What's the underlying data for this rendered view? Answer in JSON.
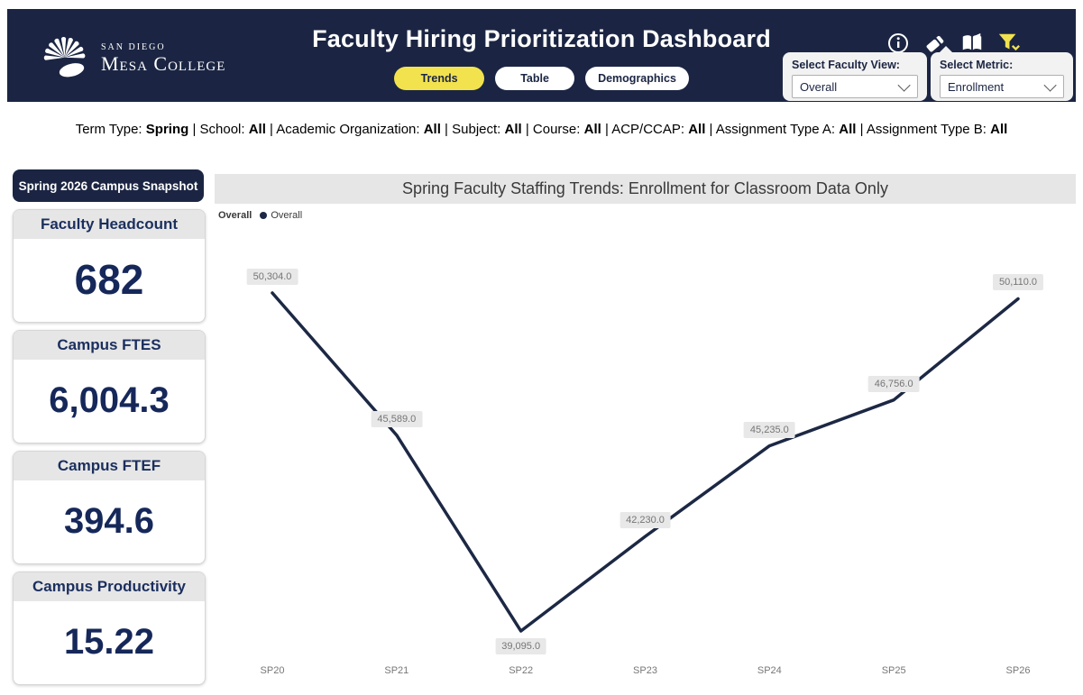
{
  "header": {
    "logo": {
      "line1": "SAN DIEGO",
      "line2": "Mesa College"
    },
    "title": "Faculty Hiring Prioritization Dashboard",
    "tabs": [
      {
        "label": "Trends",
        "active": true
      },
      {
        "label": "Table",
        "active": false
      },
      {
        "label": "Demographics",
        "active": false
      }
    ],
    "icons": [
      "info-icon",
      "eraser-icon",
      "book-icon",
      "filter-icon"
    ],
    "dropdowns": [
      {
        "label": "Select Faculty View:",
        "value": "Overall"
      },
      {
        "label": "Select Metric:",
        "value": "Enrollment"
      }
    ],
    "colors": {
      "background": "#1b2543",
      "active_tab": "#f2e24e",
      "filter_icon": "#f2e24e"
    }
  },
  "filter_bar": {
    "separator": "|",
    "items": [
      {
        "label": "Term Type:",
        "value": "Spring"
      },
      {
        "label": "School:",
        "value": "All"
      },
      {
        "label": "Academic Organization:",
        "value": "All"
      },
      {
        "label": "Subject:",
        "value": "All"
      },
      {
        "label": "Course:",
        "value": "All"
      },
      {
        "label": "ACP/CCAP:",
        "value": "All"
      },
      {
        "label": "Assignment Type A:",
        "value": "All"
      },
      {
        "label": "Assignment Type B:",
        "value": "All"
      }
    ]
  },
  "sidebar": {
    "snapshot_title": "Spring 2026 Campus Snapshot",
    "cards": [
      {
        "title": "Faculty Headcount",
        "value": "682"
      },
      {
        "title": "Campus FTES",
        "value": "6,004.3"
      },
      {
        "title": "Campus FTEF",
        "value": "394.6"
      },
      {
        "title": "Campus Productivity",
        "value": "15.22"
      }
    ]
  },
  "chart": {
    "banner_title": "Spring Faculty Staffing Trends: Enrollment for Classroom Data Only",
    "legend_title": "Overall",
    "legend_item": "Overall"
  },
  "chart_data": {
    "type": "line",
    "title": "Spring Faculty Staffing Trends: Enrollment for Classroom Data Only",
    "categories": [
      "SP20",
      "SP21",
      "SP22",
      "SP23",
      "SP24",
      "SP25",
      "SP26"
    ],
    "series": [
      {
        "name": "Overall",
        "values": [
          50304.0,
          45589.0,
          39095.0,
          42230.0,
          45235.0,
          46756.0,
          50110.0
        ],
        "labels": [
          "50,304.0",
          "45,589.0",
          "39,095.0",
          "42,230.0",
          "45,235.0",
          "46,756.0",
          "50,110.0"
        ]
      }
    ],
    "xlabel": "",
    "ylabel": "",
    "legend_position": "top-left",
    "grid": false,
    "line_color": "#1c2844",
    "label_bg": "#e8e8e8",
    "label_text_color": "#757575"
  }
}
